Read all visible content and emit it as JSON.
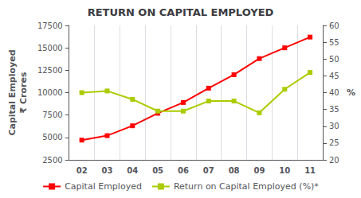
{
  "chart_data": {
    "type": "line",
    "title": "RETURN ON CAPITAL EMPLOYED",
    "categories": [
      "02",
      "03",
      "04",
      "05",
      "06",
      "07",
      "08",
      "09",
      "10",
      "11"
    ],
    "series": [
      {
        "name": "Capital Employed",
        "color": "#ff0000",
        "marker": "square",
        "values": [
          4700,
          5200,
          6300,
          7700,
          8900,
          10500,
          12000,
          13800,
          15000,
          16200
        ]
      },
      {
        "name": "Return on Capital Employed (%)*",
        "color": "#aacc00",
        "marker": "square",
        "axis": "y2",
        "values": [
          40,
          40.5,
          38,
          34.5,
          34.5,
          37.5,
          37.5,
          34,
          41,
          46
        ]
      }
    ],
    "ylabel": "Capital Employed\n₹ Crores",
    "y2label": "%",
    "ylim": [
      2500,
      17500
    ],
    "yticks": [
      2500,
      5000,
      7500,
      10000,
      12500,
      15000,
      17500
    ],
    "y2lim": [
      20,
      60
    ],
    "y2ticks": [
      20,
      25,
      30,
      35,
      40,
      45,
      50,
      55,
      60
    ],
    "grid": "x",
    "legend": "bottom"
  }
}
